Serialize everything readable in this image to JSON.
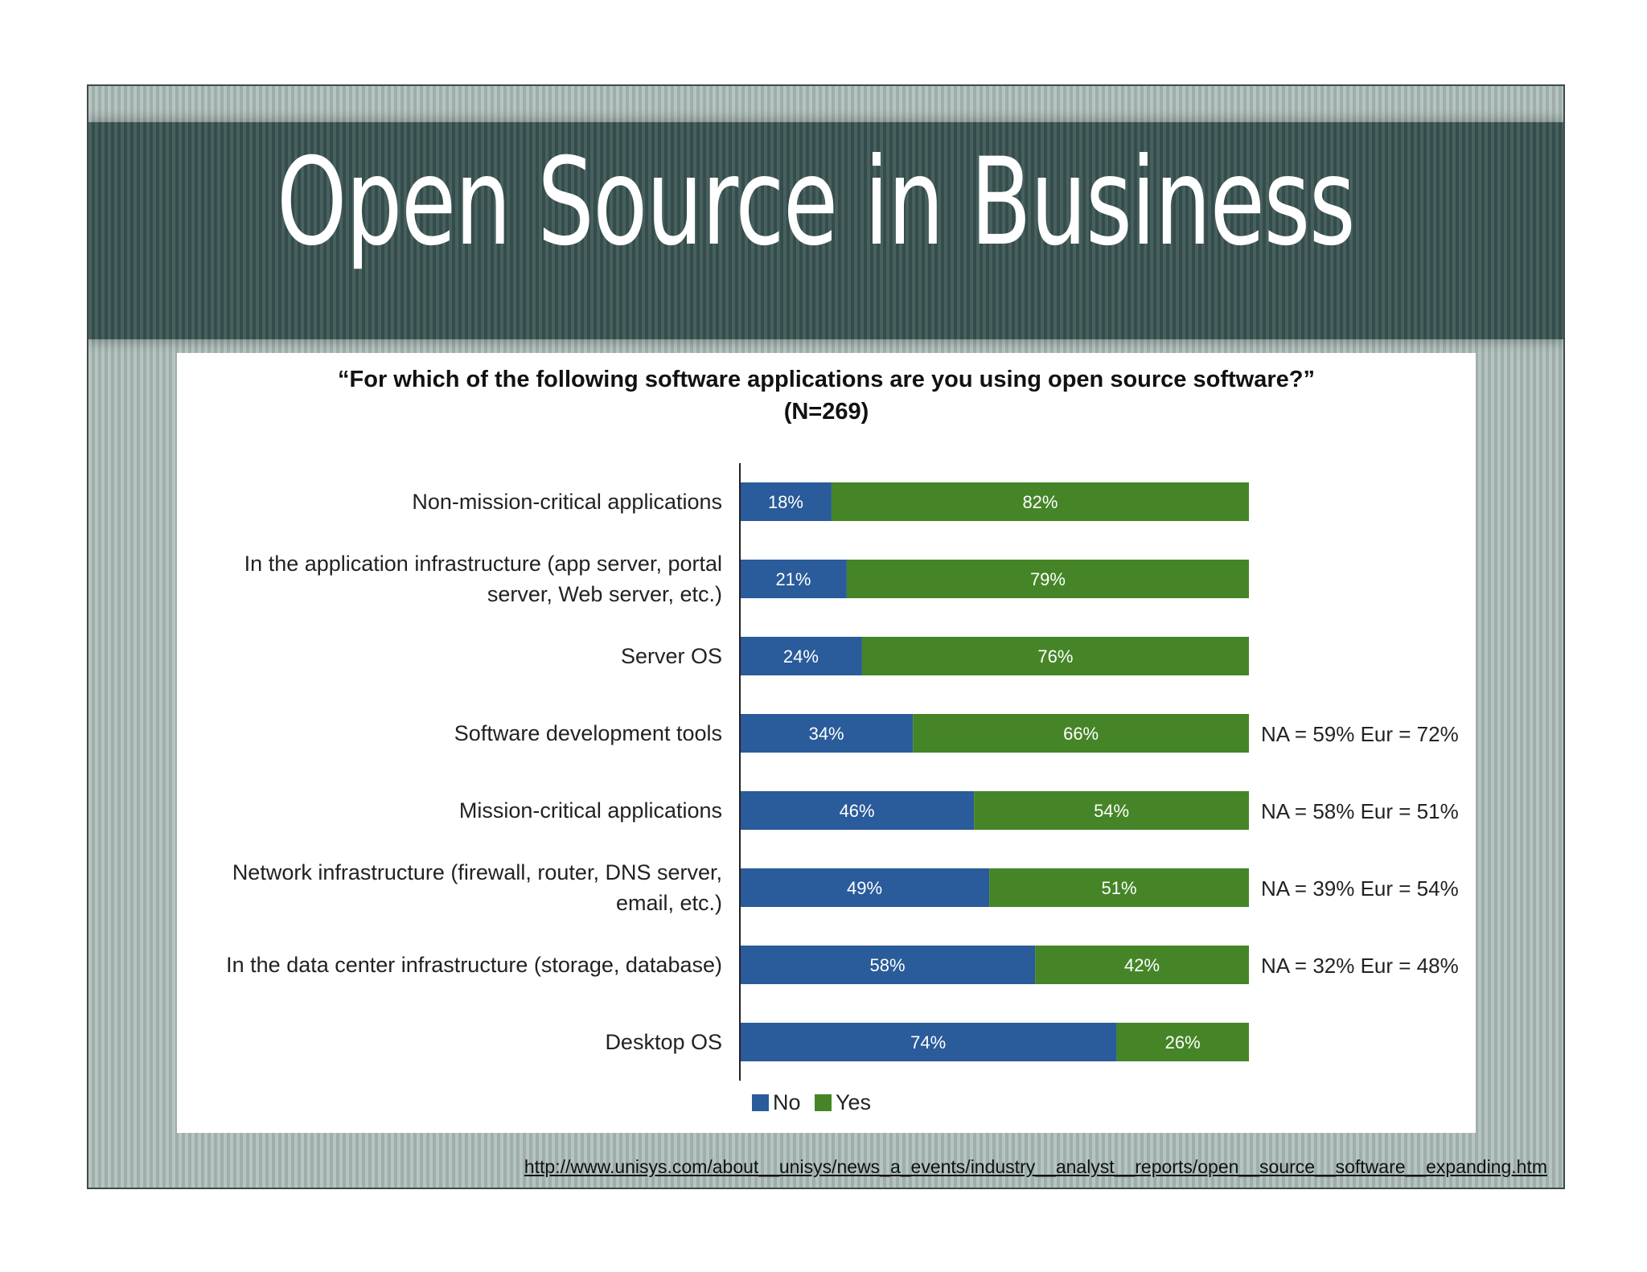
{
  "slide": {
    "title": "Open Source in Business",
    "source_url": "http://www.unisys.com/about__unisys/news_a_events/industry__analyst__reports/open__source__software__expanding.htm"
  },
  "chart_data": {
    "type": "bar",
    "stacked": true,
    "orientation": "horizontal",
    "title": "“For which of the following software applications are you using open source software?”",
    "subtitle": "(N=269)",
    "categories": [
      [
        "Non-mission-critical applications"
      ],
      [
        "In the application infrastructure (app server, portal",
        "server, Web server, etc.)"
      ],
      [
        "Server OS"
      ],
      [
        "Software development tools"
      ],
      [
        "Mission-critical applications"
      ],
      [
        "Network infrastructure (firewall, router, DNS server,",
        "email, etc.)"
      ],
      [
        "In the data center infrastructure (storage, database)"
      ],
      [
        "Desktop OS"
      ]
    ],
    "series": [
      {
        "name": "No",
        "color": "#2a5b9a",
        "values": [
          18,
          21,
          24,
          34,
          46,
          49,
          58,
          74
        ]
      },
      {
        "name": "Yes",
        "color": "#458527",
        "values": [
          82,
          79,
          76,
          66,
          54,
          51,
          42,
          26
        ]
      }
    ],
    "value_suffix": "%",
    "xlim": [
      0,
      100
    ],
    "annotations": [
      "",
      "",
      "",
      "NA = 59% Eur = 72%",
      "NA = 58% Eur = 51%",
      "NA = 39% Eur = 54%",
      "NA = 32% Eur = 48%",
      ""
    ],
    "legend_position": "bottom",
    "grid": false
  }
}
